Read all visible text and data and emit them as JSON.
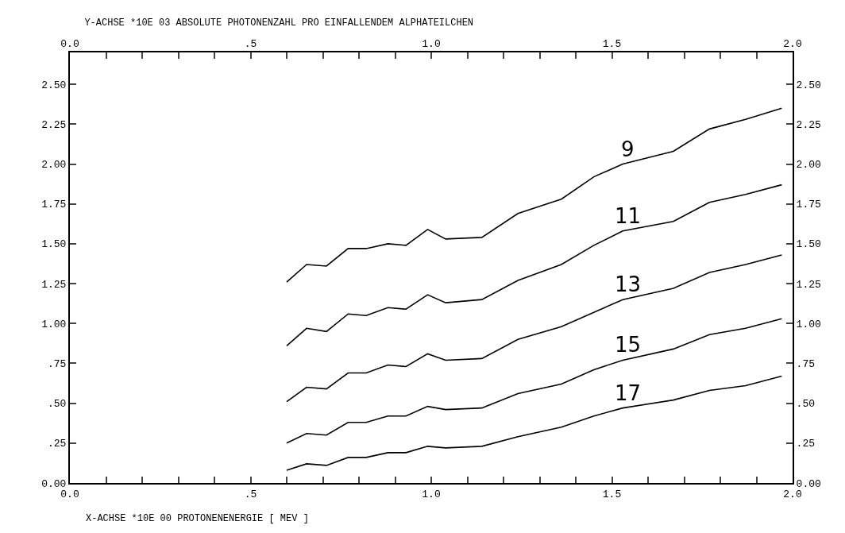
{
  "chart_data": {
    "type": "line",
    "title": "Y-ACHSE *10E 03 ABSOLUTE PHOTONENZAHL PRO EINFALLENDEM ALPHATEILCHEN",
    "xlabel": "X-ACHSE *10E 00 PROTONENENERGIE [ MEV ]",
    "x": [
      0.6,
      0.655,
      0.71,
      0.77,
      0.82,
      0.88,
      0.93,
      0.99,
      1.04,
      1.14,
      1.24,
      1.36,
      1.45,
      1.53,
      1.67,
      1.77,
      1.87,
      1.97
    ],
    "series": [
      {
        "name": "9",
        "color": "#000000",
        "values": [
          1.26,
          1.37,
          1.36,
          1.47,
          1.47,
          1.5,
          1.49,
          1.59,
          1.53,
          1.54,
          1.69,
          1.78,
          1.92,
          2.0,
          2.08,
          2.22,
          2.28,
          2.35
        ]
      },
      {
        "name": "11",
        "color": "#000000",
        "values": [
          0.86,
          0.97,
          0.95,
          1.06,
          1.05,
          1.1,
          1.09,
          1.18,
          1.13,
          1.15,
          1.27,
          1.37,
          1.49,
          1.58,
          1.64,
          1.76,
          1.81,
          1.87
        ]
      },
      {
        "name": "13",
        "color": "#000000",
        "values": [
          0.51,
          0.6,
          0.59,
          0.69,
          0.69,
          0.74,
          0.73,
          0.81,
          0.77,
          0.78,
          0.9,
          0.98,
          1.07,
          1.15,
          1.22,
          1.32,
          1.37,
          1.43
        ]
      },
      {
        "name": "15",
        "color": "#000000",
        "values": [
          0.25,
          0.31,
          0.3,
          0.38,
          0.38,
          0.42,
          0.42,
          0.48,
          0.46,
          0.47,
          0.56,
          0.62,
          0.71,
          0.77,
          0.84,
          0.93,
          0.97,
          1.03
        ]
      },
      {
        "name": "17",
        "color": "#000000",
        "values": [
          0.08,
          0.12,
          0.11,
          0.16,
          0.16,
          0.19,
          0.19,
          0.23,
          0.22,
          0.23,
          0.29,
          0.35,
          0.42,
          0.47,
          0.52,
          0.58,
          0.61,
          0.67
        ]
      }
    ],
    "xlim": [
      0,
      2
    ],
    "xticks": [
      {
        "value": 0,
        "label": "0.0"
      },
      {
        "value": 0.1,
        "label": null
      },
      {
        "value": 0.2,
        "label": null
      },
      {
        "value": 0.3,
        "label": null
      },
      {
        "value": 0.4,
        "label": null
      },
      {
        "value": 0.5,
        "label": ".5"
      },
      {
        "value": 0.6,
        "label": null
      },
      {
        "value": 0.7,
        "label": null
      },
      {
        "value": 0.8,
        "label": null
      },
      {
        "value": 0.9,
        "label": null
      },
      {
        "value": 1,
        "label": "1.0"
      },
      {
        "value": 1.1,
        "label": null
      },
      {
        "value": 1.2,
        "label": null
      },
      {
        "value": 1.3,
        "label": null
      },
      {
        "value": 1.4,
        "label": null
      },
      {
        "value": 1.5,
        "label": "1.5"
      },
      {
        "value": 1.6,
        "label": null
      },
      {
        "value": 1.7,
        "label": null
      },
      {
        "value": 1.8,
        "label": null
      },
      {
        "value": 1.9,
        "label": null
      },
      {
        "value": 2,
        "label": "2.0"
      }
    ],
    "x2lim": [
      0,
      2
    ],
    "x2ticks": [
      {
        "value": 0,
        "label": "0.0"
      },
      {
        "value": 0.1,
        "label": null
      },
      {
        "value": 0.2,
        "label": null
      },
      {
        "value": 0.3,
        "label": null
      },
      {
        "value": 0.4,
        "label": null
      },
      {
        "value": 0.5,
        "label": ".5"
      },
      {
        "value": 0.6,
        "label": null
      },
      {
        "value": 0.7,
        "label": null
      },
      {
        "value": 0.8,
        "label": null
      },
      {
        "value": 0.9,
        "label": null
      },
      {
        "value": 1,
        "label": "1.0"
      },
      {
        "value": 1.1,
        "label": null
      },
      {
        "value": 1.2,
        "label": null
      },
      {
        "value": 1.3,
        "label": null
      },
      {
        "value": 1.4,
        "label": null
      },
      {
        "value": 1.5,
        "label": "1.5"
      },
      {
        "value": 1.6,
        "label": null
      },
      {
        "value": 1.7,
        "label": null
      },
      {
        "value": 1.8,
        "label": null
      },
      {
        "value": 1.9,
        "label": null
      },
      {
        "value": 2,
        "label": "2.0"
      }
    ],
    "ylim": [
      0,
      2.7
    ],
    "yticks": [
      {
        "value": 0,
        "label": "0.00"
      },
      {
        "value": 0.25,
        "label": ".25"
      },
      {
        "value": 0.5,
        "label": ".50"
      },
      {
        "value": 0.75,
        "label": ".75"
      },
      {
        "value": 1,
        "label": "1.00"
      },
      {
        "value": 1.25,
        "label": "1.25"
      },
      {
        "value": 1.5,
        "label": "1.50"
      },
      {
        "value": 1.75,
        "label": "1.75"
      },
      {
        "value": 2,
        "label": "2.00"
      },
      {
        "value": 2.25,
        "label": "2.25"
      },
      {
        "value": 2.5,
        "label": "2.50"
      }
    ],
    "y2lim": [
      0,
      2.7
    ],
    "y2ticks": [
      {
        "value": 0,
        "label": "0.00"
      },
      {
        "value": 0.25,
        "label": ".25"
      },
      {
        "value": 0.5,
        "label": ".50"
      },
      {
        "value": 0.75,
        "label": ".75"
      },
      {
        "value": 1,
        "label": "1.00"
      },
      {
        "value": 1.25,
        "label": "1.25"
      },
      {
        "value": 1.5,
        "label": "1.50"
      },
      {
        "value": 1.75,
        "label": "1.75"
      },
      {
        "value": 2,
        "label": "2.00"
      },
      {
        "value": 2.25,
        "label": "2.25"
      },
      {
        "value": 2.5,
        "label": "2.50"
      }
    ],
    "grid": false,
    "marker": "none",
    "line_style": "solid"
  }
}
